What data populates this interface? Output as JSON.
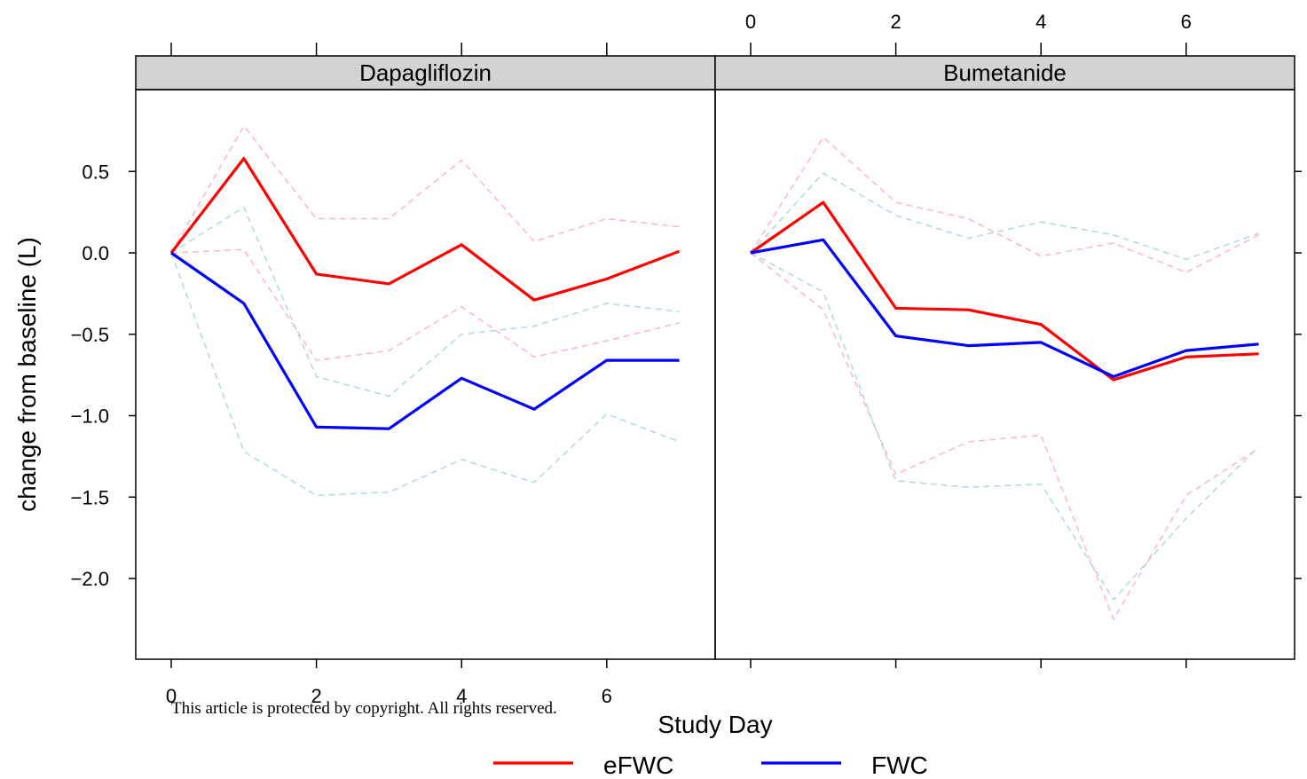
{
  "copyright_notice": "This article is protected by copyright. All rights reserved.",
  "chart_data": {
    "type": "line",
    "panels": [
      {
        "name": "Dapagliflozin",
        "series": [
          {
            "name": "eFWC",
            "color": "#ff0000",
            "style": "solid",
            "x": [
              0,
              1,
              2,
              3,
              4,
              5,
              6,
              7
            ],
            "y": [
              0,
              0.58,
              -0.13,
              -0.19,
              0.05,
              -0.29,
              -0.16,
              0.01
            ]
          },
          {
            "name": "FWC",
            "color": "#0000ff",
            "style": "solid",
            "x": [
              0,
              1,
              2,
              3,
              4,
              5,
              6,
              7
            ],
            "y": [
              0,
              -0.31,
              -1.07,
              -1.08,
              -0.77,
              -0.96,
              -0.66,
              -0.66
            ]
          },
          {
            "color": "#ffb6c1",
            "style": "dashed",
            "x": [
              0,
              1,
              2,
              3,
              4,
              5,
              6,
              7
            ],
            "y": [
              0,
              0.78,
              0.21,
              0.21,
              0.57,
              0.07,
              0.21,
              0.16
            ]
          },
          {
            "color": "#ffb6c1",
            "style": "dashed",
            "x": [
              0,
              1,
              2,
              3,
              4,
              5,
              6,
              7
            ],
            "y": [
              0,
              0.02,
              -0.66,
              -0.6,
              -0.33,
              -0.64,
              -0.54,
              -0.43
            ]
          },
          {
            "color": "#add8e6",
            "style": "dashed",
            "x": [
              0,
              1,
              2,
              3,
              4,
              5,
              6,
              7
            ],
            "y": [
              0,
              0.28,
              -0.76,
              -0.88,
              -0.5,
              -0.45,
              -0.31,
              -0.36
            ]
          },
          {
            "color": "#add8e6",
            "style": "dashed",
            "x": [
              0,
              1,
              2,
              3,
              4,
              5,
              6,
              7
            ],
            "y": [
              0,
              -1.22,
              -1.49,
              -1.47,
              -1.27,
              -1.41,
              -0.99,
              -1.16
            ]
          }
        ]
      },
      {
        "name": "Bumetanide",
        "series": [
          {
            "name": "eFWC",
            "color": "#ff0000",
            "style": "solid",
            "x": [
              0,
              1,
              2,
              3,
              4,
              5,
              6,
              7
            ],
            "y": [
              0,
              0.31,
              -0.34,
              -0.35,
              -0.44,
              -0.78,
              -0.64,
              -0.62
            ]
          },
          {
            "name": "FWC",
            "color": "#0000ff",
            "style": "solid",
            "x": [
              0,
              1,
              2,
              3,
              4,
              5,
              6,
              7
            ],
            "y": [
              0,
              0.08,
              -0.51,
              -0.57,
              -0.55,
              -0.76,
              -0.6,
              -0.56
            ]
          },
          {
            "color": "#ffb6c1",
            "style": "dashed",
            "x": [
              0,
              1,
              2,
              3,
              4,
              5,
              6,
              7
            ],
            "y": [
              0,
              0.71,
              0.31,
              0.21,
              -0.02,
              0.06,
              -0.12,
              0.11
            ]
          },
          {
            "color": "#ffb6c1",
            "style": "dashed",
            "x": [
              0,
              1,
              2,
              3,
              4,
              5,
              6,
              7
            ],
            "y": [
              0,
              -0.35,
              -1.36,
              -1.16,
              -1.12,
              -2.25,
              -1.49,
              -1.2
            ]
          },
          {
            "color": "#add8e6",
            "style": "dashed",
            "x": [
              0,
              1,
              2,
              3,
              4,
              5,
              6,
              7
            ],
            "y": [
              0,
              0.49,
              0.23,
              0.09,
              0.19,
              0.11,
              -0.04,
              0.12
            ]
          },
          {
            "color": "#add8e6",
            "style": "dashed",
            "x": [
              0,
              1,
              2,
              3,
              4,
              5,
              6,
              7
            ],
            "y": [
              0,
              -0.24,
              -1.4,
              -1.44,
              -1.42,
              -2.13,
              -1.63,
              -1.19
            ]
          }
        ]
      }
    ],
    "xlabel": "Study Day",
    "ylabel": "change from baseline (L)",
    "xlim": [
      -0.5,
      7.45
    ],
    "ylim": [
      -2.5,
      1.0
    ],
    "x_ticks": [
      0,
      2,
      4,
      6
    ],
    "x_tick_labels": [
      "0",
      "2",
      "4",
      "6"
    ],
    "y_ticks": [
      -2.0,
      -1.5,
      -1.0,
      -0.5,
      0.0,
      0.5
    ],
    "y_tick_labels": [
      "-2.0",
      "-1.5",
      "-1.0",
      "-0.5",
      "0.0",
      "0.5"
    ],
    "legend": {
      "position": "bottom",
      "entries": [
        {
          "label": "eFWC",
          "color": "#ff0000"
        },
        {
          "label": "FWC",
          "color": "#0000ff"
        }
      ]
    },
    "grid": false
  }
}
